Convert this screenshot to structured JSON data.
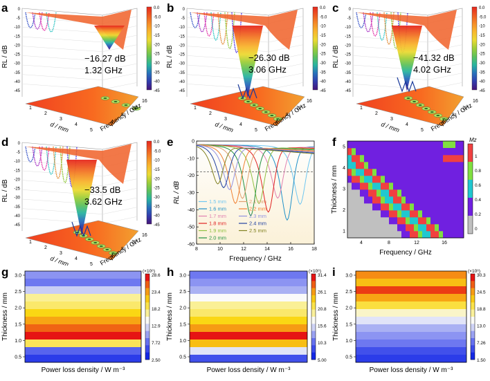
{
  "panels": {
    "a": {
      "label": "a",
      "rl": "−16.27 dB",
      "freq": "1.32 GHz"
    },
    "b": {
      "label": "b",
      "rl": "−26.30 dB",
      "freq": "3.06 GHz"
    },
    "c": {
      "label": "c",
      "rl": "−41.32 dB",
      "freq": "4.02 GHz"
    },
    "d": {
      "label": "d",
      "rl": "−33.5 dB",
      "freq": "3.62 GHz"
    },
    "e": {
      "label": "e"
    },
    "f": {
      "label": "f"
    },
    "g": {
      "label": "g"
    },
    "h": {
      "label": "h"
    },
    "i": {
      "label": "i"
    }
  },
  "axes3d": {
    "zlabel": "RL / dB",
    "dlabel": "d / mm",
    "flabel": "Frequency / GHz",
    "zticks": [
      "0",
      "-5",
      "-10",
      "-15",
      "-20",
      "-25",
      "-30",
      "-35",
      "-40",
      "-45"
    ],
    "dticks": [
      "1",
      "2",
      "3",
      "4",
      "5"
    ],
    "fticks": [
      "4",
      "8",
      "12",
      "16"
    ]
  },
  "colorbar3d": [
    "0.0",
    "-5.0",
    "-10",
    "-15",
    "-20",
    "-25",
    "-30",
    "-35",
    "-40",
    "-45"
  ],
  "chart_data": [
    {
      "type": "line",
      "panel": "e",
      "xlabel": "Frequency / GHz",
      "ylabel": "RL / dB",
      "xlim": [
        8,
        18
      ],
      "ylim": [
        -60,
        0
      ],
      "xticks": [
        "8",
        "10",
        "12",
        "14",
        "16",
        "18"
      ],
      "yticks": [
        "0",
        "-10",
        "-20",
        "-30",
        "-40",
        "-50",
        "-60"
      ],
      "reference_line": -18,
      "series": [
        {
          "name": "1.5 mm",
          "color": "#6ec6f0",
          "min_freq": 16.8,
          "min_rl": -34
        },
        {
          "name": "1.6 mm",
          "color": "#1e90c8",
          "min_freq": 15.7,
          "min_rl": -43
        },
        {
          "name": "1.7 mm",
          "color": "#e080b0",
          "min_freq": 14.9,
          "min_rl": -30
        },
        {
          "name": "1.8 mm",
          "color": "#e02020",
          "min_freq": 14.1,
          "min_rl": -38
        },
        {
          "name": "1.9 mm",
          "color": "#90c040",
          "min_freq": 13.3,
          "min_rl": -33
        },
        {
          "name": "2.0 mm",
          "color": "#209040",
          "min_freq": 12.6,
          "min_rl": -40
        },
        {
          "name": "2.1 mm",
          "color": "#e0a070",
          "min_freq": 11.9,
          "min_rl": -30
        },
        {
          "name": "2.2 mm",
          "color": "#f08030",
          "min_freq": 11.3,
          "min_rl": -33
        },
        {
          "name": "2.3 mm",
          "color": "#9090e0",
          "min_freq": 10.8,
          "min_rl": -25
        },
        {
          "name": "2.4 mm",
          "color": "#2040a0",
          "min_freq": 10.3,
          "min_rl": -24
        },
        {
          "name": "2.5 mm",
          "color": "#808020",
          "min_freq": 9.8,
          "min_rl": -22
        }
      ]
    },
    {
      "type": "heatmap",
      "panel": "f",
      "xlabel": "Frequency / GHz",
      "ylabel": "Thickness / mm",
      "xticks": [
        "4",
        "8",
        "12",
        "16"
      ],
      "yticks": [
        "1",
        "2",
        "3",
        "4",
        "5"
      ],
      "colorbar_title": "Mz",
      "colorbar_ticks": [
        "1",
        "0.8",
        "0.6",
        "0.4",
        "0.2",
        "0"
      ]
    },
    {
      "type": "heatmap",
      "panel": "g",
      "xlabel": "Power loss density / W m⁻³",
      "ylabel": "Thickness / mm",
      "yticks": [
        "3.0",
        "2.5",
        "2.0",
        "1.5",
        "1.0",
        "0.5"
      ],
      "colorbar_scale": "(×10⁶)",
      "colorbar_ticks": [
        "28.6",
        "23.4",
        "18.2",
        "12.9",
        "7.72",
        "2.50"
      ],
      "rows_top_to_bottom": [
        0.25,
        0.2,
        0.35,
        0.55,
        0.6,
        0.7,
        0.8,
        0.9,
        1.0,
        0.62,
        0.15,
        0.05
      ]
    },
    {
      "type": "heatmap",
      "panel": "h",
      "xlabel": "Power loss density / W m⁻³",
      "ylabel": "Thickness / mm",
      "yticks": [
        "3.0",
        "2.5",
        "2.0",
        "1.5",
        "1.0",
        "0.5"
      ],
      "colorbar_scale": "(×10⁶)",
      "colorbar_ticks": [
        "31.4",
        "26.1",
        "20.8",
        "15.6",
        "10.3",
        "5.00"
      ],
      "rows_top_to_bottom": [
        0.2,
        0.25,
        0.3,
        0.45,
        0.55,
        0.6,
        0.7,
        0.82,
        1.0,
        0.75,
        0.4,
        0.1
      ]
    },
    {
      "type": "heatmap",
      "panel": "i",
      "xlabel": "Power loss density / W m⁻³",
      "ylabel": "Thickness / mm",
      "yticks": [
        "3.0",
        "2.5",
        "2.0",
        "1.5",
        "1.0",
        "0.5"
      ],
      "colorbar_scale": "(×10⁶)",
      "colorbar_ticks": [
        "30.3",
        "24.5",
        "18.8",
        "13.0",
        "7.26",
        "1.50"
      ],
      "rows_top_to_bottom": [
        0.85,
        0.75,
        0.95,
        0.8,
        0.65,
        0.5,
        0.4,
        0.3,
        0.25,
        0.2,
        0.1,
        0.05
      ]
    }
  ]
}
